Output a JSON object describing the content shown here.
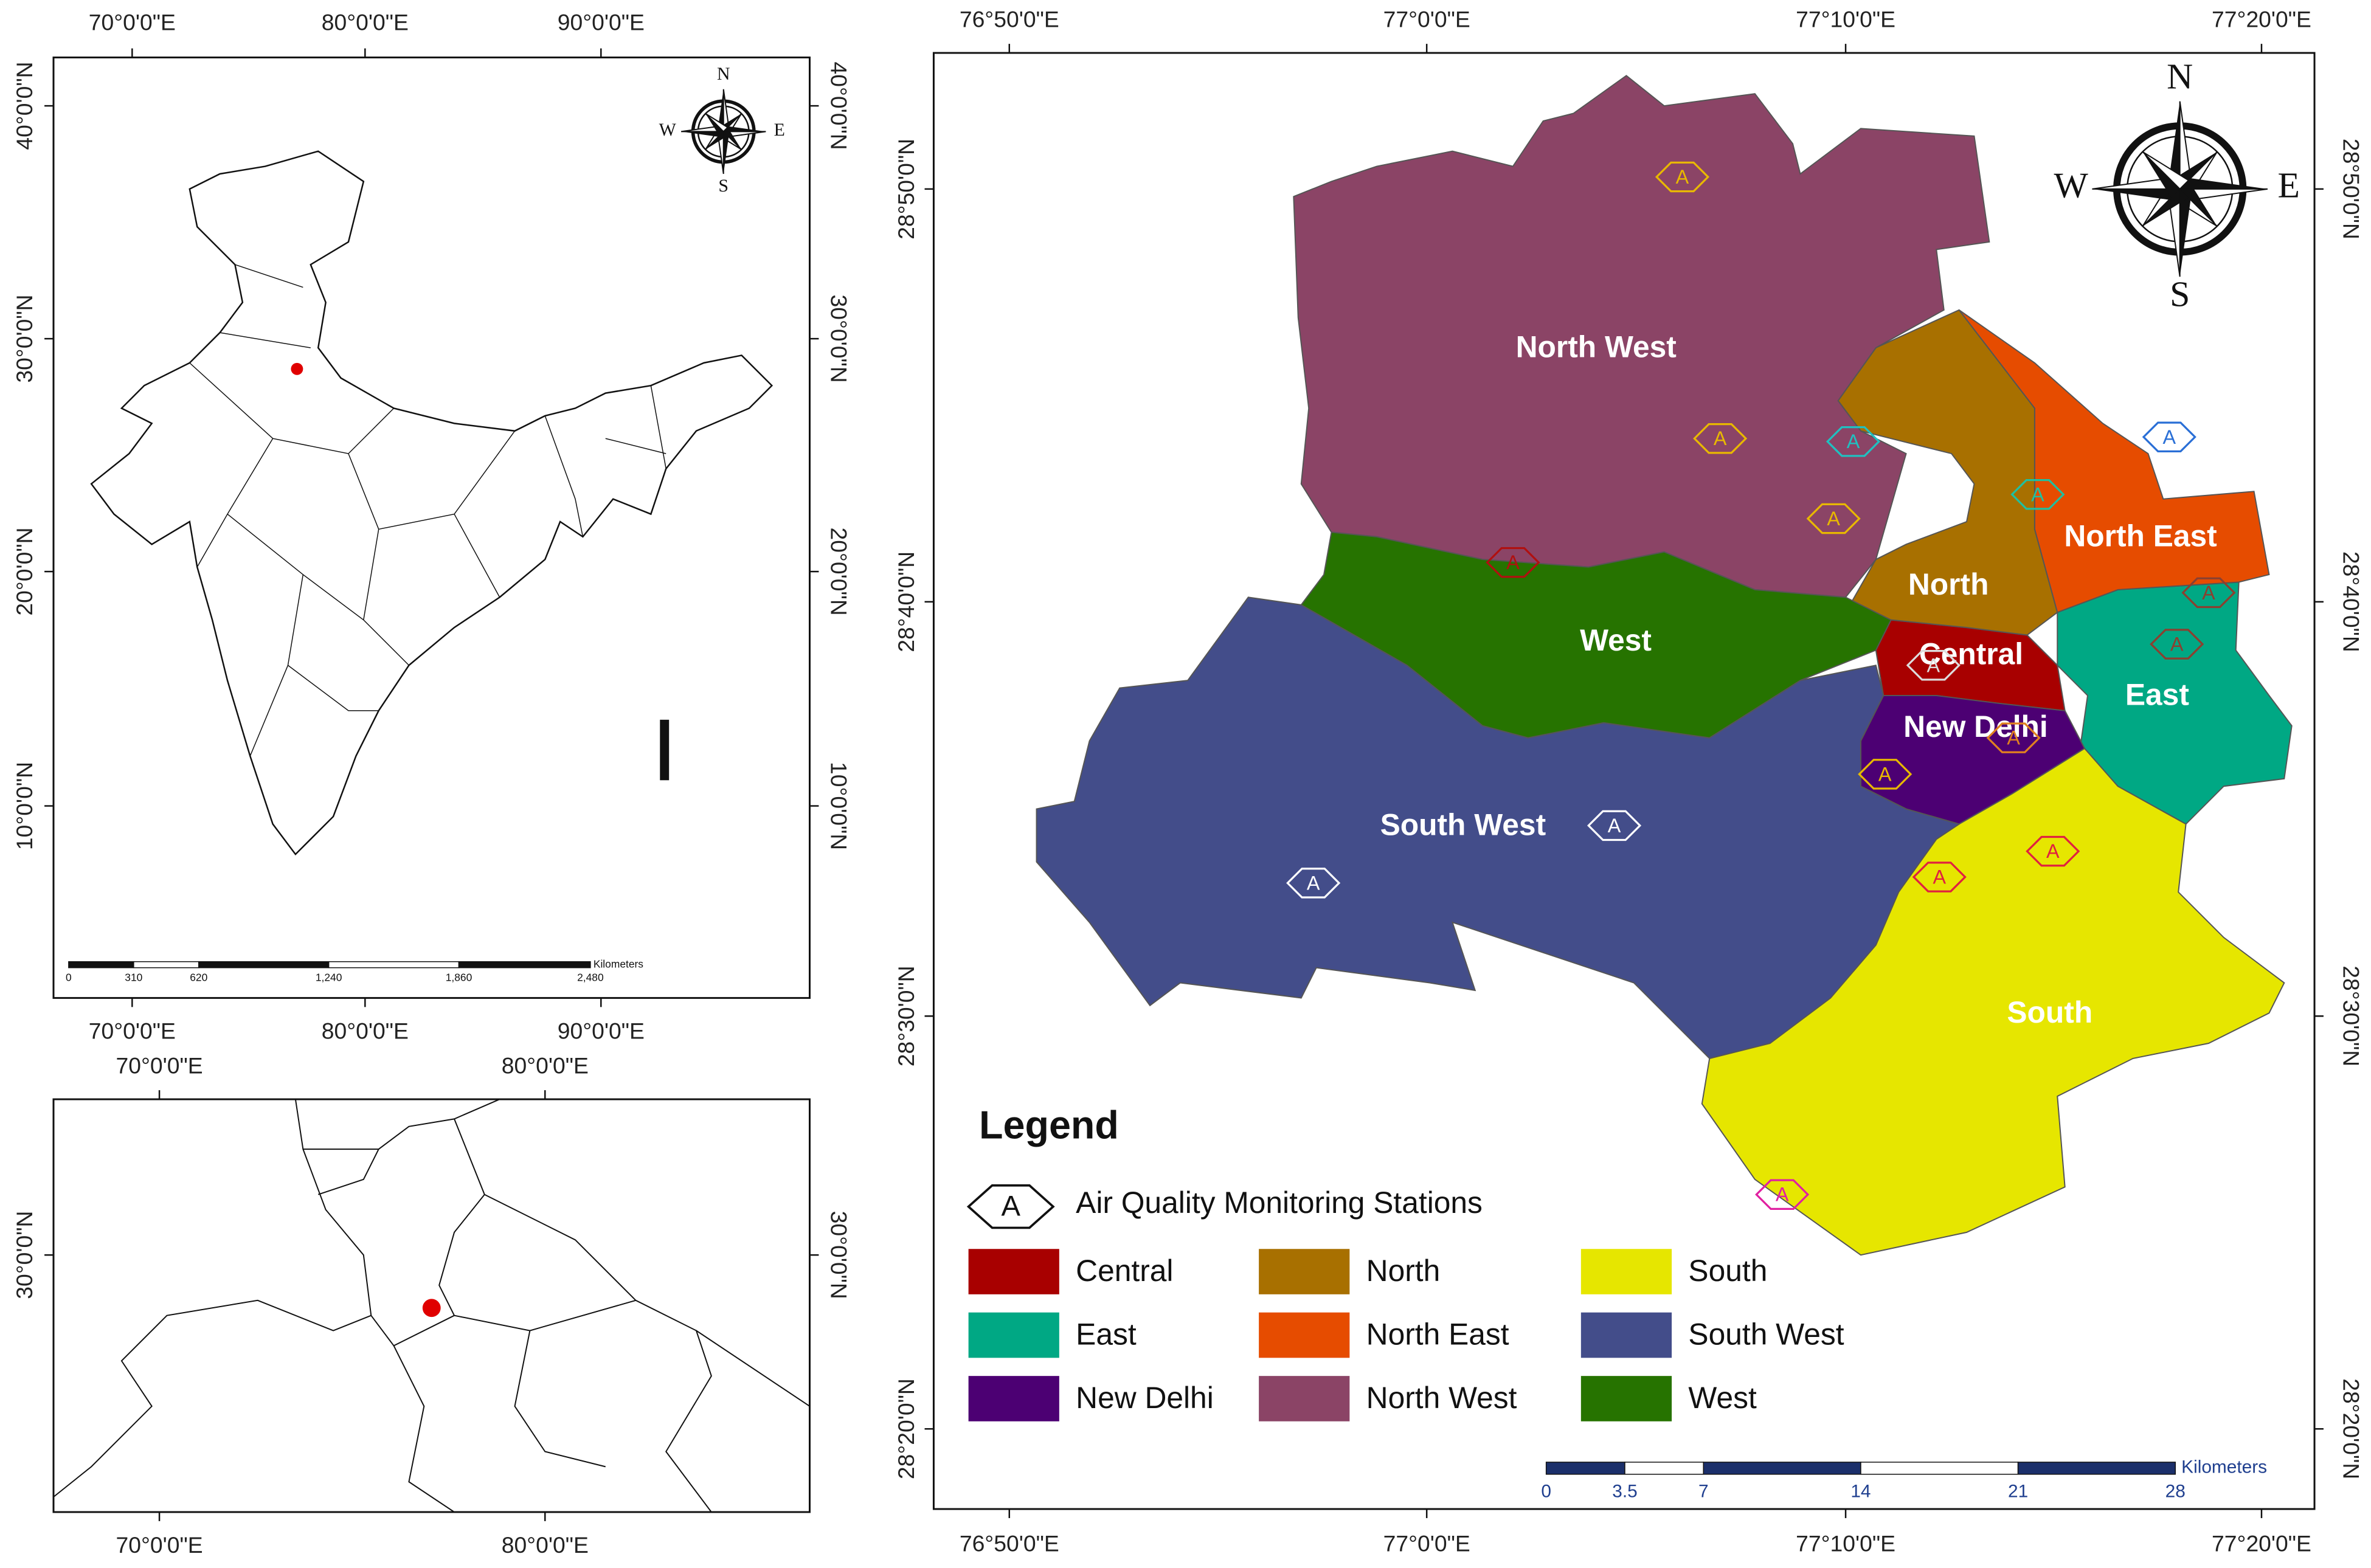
{
  "india_map": {
    "lon_labels": [
      "70°0'0\"E",
      "80°0'0\"E",
      "90°0'0\"E"
    ],
    "lat_labels": [
      "40°0'0\"N",
      "30°0'0\"N",
      "20°0'0\"N",
      "10°0'0\"N"
    ],
    "compass": {
      "n": "N",
      "s": "S",
      "w": "W",
      "e": "E"
    },
    "scale": {
      "ticks": [
        "0",
        "310",
        "620",
        "1,240",
        "1,860",
        "2,480"
      ],
      "unit": "Kilometers"
    }
  },
  "region_map": {
    "lon_labels": [
      "70°0'0\"E",
      "80°0'0\"E"
    ],
    "lat_labels": [
      "30°0'0\"N"
    ]
  },
  "delhi_map": {
    "lon_labels": [
      "76°50'0\"E",
      "77°0'0\"E",
      "77°10'0\"E",
      "77°20'0\"E"
    ],
    "lat_labels": [
      "28°50'0\"N",
      "28°40'0\"N",
      "28°30'0\"N",
      "28°20'0\"N"
    ],
    "compass": {
      "n": "N",
      "s": "S",
      "w": "W",
      "e": "E"
    },
    "scale": {
      "ticks": [
        "0",
        "3.5",
        "7",
        "14",
        "21",
        "28"
      ],
      "unit": "Kilometers"
    },
    "districts": [
      {
        "name": "Central",
        "color": "#a80000"
      },
      {
        "name": "East",
        "color": "#00a884"
      },
      {
        "name": "New Delhi",
        "color": "#4c0073"
      },
      {
        "name": "North",
        "color": "#a87000"
      },
      {
        "name": "North East",
        "color": "#e64c00"
      },
      {
        "name": "North West",
        "color": "#8b4466"
      },
      {
        "name": "South",
        "color": "#e6e600"
      },
      {
        "name": "South West",
        "color": "#434d8a"
      },
      {
        "name": "West",
        "color": "#267300"
      }
    ],
    "stations": [
      "A",
      "A",
      "A",
      "A",
      "A",
      "A",
      "A",
      "A",
      "A",
      "A",
      "A",
      "A",
      "A",
      "A",
      "A",
      "A",
      "A"
    ]
  },
  "legend": {
    "title": "Legend",
    "station_symbol": "A",
    "station_label": "Air Quality Monitoring Stations"
  }
}
